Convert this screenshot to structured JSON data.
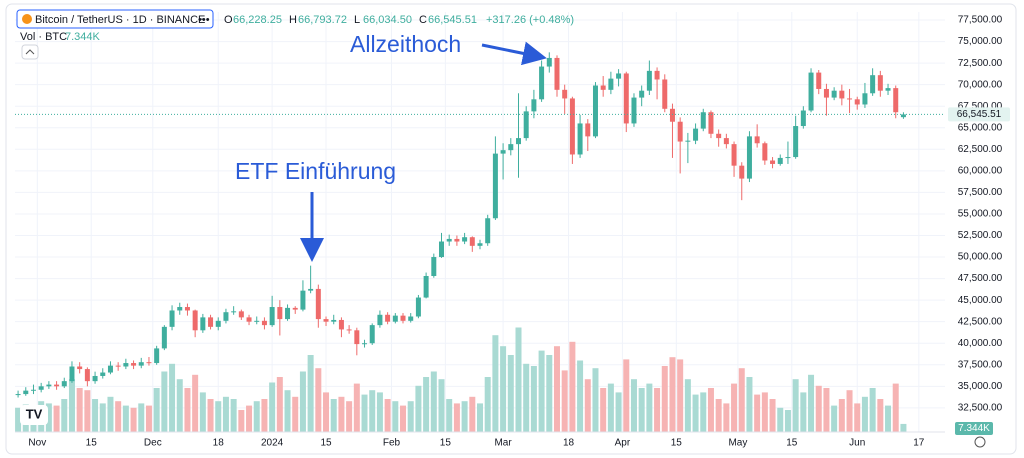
{
  "header": {
    "symbol": "Bitcoin / TetherUS · 1D · BINANCE",
    "more": "•••",
    "ohlc": [
      {
        "label": "O",
        "value": "66,228.25"
      },
      {
        "label": "H",
        "value": "66,793.72"
      },
      {
        "label": "L",
        "value": "66,034.50"
      },
      {
        "label": "C",
        "value": "66,545.51"
      }
    ],
    "change": "+317.26 (+0.48%)",
    "volume_label": "Vol · BTC"
  },
  "chart_data": {
    "type": "candlestick",
    "open": [
      34000,
      34100,
      34500,
      34600,
      35000,
      35200,
      35000,
      35600,
      37300,
      37000,
      35600,
      36200,
      36600,
      37400,
      37300,
      37700,
      37400,
      37800,
      37700,
      39400,
      41900,
      43800,
      44200,
      43800,
      41500,
      43000,
      41900,
      42600,
      43600,
      43700,
      43000,
      42500,
      42600,
      42100,
      44200,
      42800,
      44100,
      43900,
      46100,
      46300,
      42800,
      42500,
      42700,
      41600,
      41500,
      39900,
      40000,
      42100,
      43300,
      42500,
      43200,
      42600,
      43100,
      45300,
      47800,
      50000,
      51800,
      52100,
      51800,
      52300,
      51300,
      51600,
      54500,
      62000,
      62400,
      63100,
      63800,
      66900,
      68300,
      72100,
      73100,
      69400,
      68400,
      61900,
      65500,
      64000,
      69900,
      69400,
      70700,
      71300,
      65500,
      68500,
      69300,
      71600,
      70600,
      67200,
      65700,
      63400,
      63500,
      64900,
      66800,
      64300,
      63800,
      63100,
      60600,
      59100,
      64000,
      63200,
      61200,
      60800,
      61500,
      61600,
      65200,
      67000,
      71400,
      69500,
      68500,
      69300,
      68400,
      68300,
      67700,
      69000,
      71100,
      69300,
      69600,
      66228.25
    ],
    "high": [
      34500,
      34900,
      35200,
      35400,
      35600,
      35600,
      36000,
      37900,
      37800,
      37200,
      36700,
      37100,
      37900,
      37800,
      38200,
      38000,
      38300,
      38400,
      39700,
      42100,
      44400,
      44700,
      44600,
      43900,
      43400,
      43300,
      43000,
      44000,
      44300,
      43900,
      43300,
      43100,
      43000,
      45500,
      45000,
      44500,
      44300,
      47300,
      49000,
      46800,
      43100,
      43300,
      43000,
      42100,
      41800,
      40400,
      42300,
      43800,
      43600,
      43500,
      43500,
      43500,
      45600,
      48200,
      50400,
      52800,
      52600,
      52500,
      52800,
      52400,
      52000,
      54900,
      64000,
      63200,
      63800,
      69000,
      67500,
      69400,
      72800,
      73750,
      73400,
      70000,
      68600,
      66500,
      66000,
      70300,
      71000,
      71500,
      71800,
      71500,
      69000,
      69900,
      72800,
      72000,
      71200,
      67800,
      66200,
      64400,
      65500,
      67200,
      67000,
      64800,
      64300,
      63400,
      61000,
      64600,
      65400,
      63400,
      61600,
      61900,
      63400,
      66400,
      67500,
      71900,
      71700,
      70100,
      69700,
      70000,
      69500,
      68600,
      70200,
      71900,
      71600,
      70100,
      69900,
      66793.72
    ],
    "low": [
      33700,
      33900,
      34100,
      34300,
      34700,
      34600,
      34800,
      35400,
      36500,
      35000,
      35300,
      35900,
      36400,
      36800,
      37000,
      37000,
      37100,
      37400,
      37500,
      39200,
      41500,
      43300,
      43200,
      40700,
      41200,
      41600,
      41500,
      42300,
      43300,
      42700,
      42100,
      42200,
      41600,
      41900,
      40900,
      42600,
      43400,
      43700,
      45800,
      41800,
      42000,
      42200,
      40700,
      41100,
      38600,
      39500,
      39800,
      41800,
      42200,
      42300,
      42300,
      42400,
      42900,
      45200,
      47600,
      49900,
      51300,
      51300,
      51500,
      50600,
      50900,
      51300,
      54300,
      59000,
      61800,
      59200,
      63500,
      66100,
      68000,
      71400,
      68600,
      66600,
      60800,
      61500,
      62300,
      63800,
      68600,
      68900,
      69800,
      64500,
      65100,
      67500,
      68800,
      68300,
      66800,
      61500,
      59700,
      60900,
      63100,
      64600,
      63800,
      62800,
      62600,
      59300,
      56600,
      58700,
      62700,
      60700,
      60300,
      60600,
      60800,
      61400,
      64900,
      66800,
      68900,
      66400,
      68200,
      67600,
      66700,
      67100,
      67300,
      68700,
      68600,
      68800,
      66100,
      66034.5
    ],
    "close": [
      34100,
      34500,
      34600,
      35000,
      35200,
      35000,
      35600,
      37300,
      37000,
      35600,
      36200,
      36600,
      37400,
      37300,
      37700,
      37400,
      37800,
      37700,
      39400,
      41900,
      43800,
      44200,
      43800,
      41500,
      43000,
      41900,
      42600,
      43600,
      43700,
      43000,
      42500,
      42600,
      42100,
      44200,
      42800,
      44100,
      43900,
      46100,
      46300,
      42800,
      42500,
      42700,
      41600,
      41500,
      39900,
      40000,
      42100,
      43300,
      42500,
      43200,
      42600,
      43100,
      45300,
      47800,
      50000,
      51800,
      52100,
      51800,
      52300,
      51300,
      51600,
      54500,
      62000,
      62400,
      63100,
      63800,
      66900,
      68300,
      72100,
      73100,
      69400,
      68400,
      61900,
      65500,
      64000,
      69900,
      69400,
      70700,
      71300,
      65500,
      68500,
      69300,
      71600,
      70600,
      67200,
      65700,
      63400,
      63500,
      64900,
      66800,
      64300,
      63800,
      63100,
      60600,
      59100,
      64000,
      63200,
      61200,
      60800,
      61500,
      61600,
      65200,
      67000,
      71400,
      69500,
      68500,
      69300,
      68400,
      68300,
      67700,
      69000,
      71100,
      69300,
      69600,
      66800,
      66545.51
    ],
    "volume": [
      22,
      25,
      20,
      28,
      26,
      24,
      30,
      48,
      40,
      38,
      30,
      26,
      32,
      28,
      24,
      22,
      26,
      24,
      40,
      55,
      62,
      48,
      40,
      52,
      36,
      30,
      28,
      32,
      30,
      20,
      24,
      28,
      30,
      45,
      50,
      38,
      32,
      55,
      70,
      58,
      36,
      30,
      32,
      28,
      44,
      34,
      38,
      36,
      30,
      28,
      24,
      28,
      42,
      50,
      55,
      48,
      30,
      26,
      28,
      32,
      26,
      50,
      88,
      78,
      70,
      95,
      62,
      60,
      74,
      70,
      78,
      56,
      82,
      65,
      48,
      58,
      40,
      44,
      36,
      66,
      48,
      40,
      44,
      40,
      60,
      68,
      66,
      48,
      34,
      36,
      40,
      30,
      26,
      44,
      58,
      50,
      34,
      36,
      30,
      22,
      20,
      48,
      36,
      52,
      42,
      40,
      24,
      30,
      38,
      26,
      32,
      40,
      30,
      24,
      44,
      7.344
    ],
    "volume_last_label": "7.344K",
    "last_price_label": "66,545.51",
    "up_color": "#3fae9e",
    "down_color": "#ee6a6a",
    "volume_up_color": "#a9dad3",
    "volume_down_color": "#f6b3b3",
    "ylim": [
      29700,
      78430
    ],
    "yticks": [
      {
        "value": 77500,
        "label": "77,500.00"
      },
      {
        "value": 75000,
        "label": "75,000.00"
      },
      {
        "value": 72500,
        "label": "72,500.00"
      },
      {
        "value": 70000,
        "label": "70,000.00"
      },
      {
        "value": 67500,
        "label": "67,500.00"
      },
      {
        "value": 65000,
        "label": "65,000.00"
      },
      {
        "value": 62500,
        "label": "62,500.00"
      },
      {
        "value": 60000,
        "label": "60,000.00"
      },
      {
        "value": 57500,
        "label": "57,500.00"
      },
      {
        "value": 55000,
        "label": "55,000.00"
      },
      {
        "value": 52500,
        "label": "52,500.00"
      },
      {
        "value": 50000,
        "label": "50,000.00"
      },
      {
        "value": 47500,
        "label": "47,500.00"
      },
      {
        "value": 45000,
        "label": "45,000.00"
      },
      {
        "value": 42500,
        "label": "42,500.00"
      },
      {
        "value": 40000,
        "label": "40,000.00"
      },
      {
        "value": 37500,
        "label": "37,500.00"
      },
      {
        "value": 35000,
        "label": "35,000.00"
      },
      {
        "value": 32500,
        "label": "32,500.00"
      }
    ],
    "volume_ylim": [
      0,
      100
    ],
    "xlim": [
      -0.4,
      120.4
    ],
    "xticks": [
      {
        "value": 2.5,
        "label": "Nov"
      },
      {
        "value": 9.5,
        "label": "15"
      },
      {
        "value": 17.5,
        "label": "Dec"
      },
      {
        "value": 26,
        "label": "18"
      },
      {
        "value": 33,
        "label": "2024"
      },
      {
        "value": 40,
        "label": "15"
      },
      {
        "value": 48.5,
        "label": "Feb"
      },
      {
        "value": 55.5,
        "label": "15"
      },
      {
        "value": 63,
        "label": "Mar"
      },
      {
        "value": 71.5,
        "label": "18"
      },
      {
        "value": 78.5,
        "label": "Apr"
      },
      {
        "value": 85.5,
        "label": "15"
      },
      {
        "value": 93.5,
        "label": "May"
      },
      {
        "value": 100.5,
        "label": "15"
      },
      {
        "value": 109,
        "label": "Jun"
      },
      {
        "value": 117,
        "label": "17"
      }
    ],
    "grid": true,
    "annotations": [
      "Allzeithoch",
      "ETF Einführung"
    ]
  }
}
